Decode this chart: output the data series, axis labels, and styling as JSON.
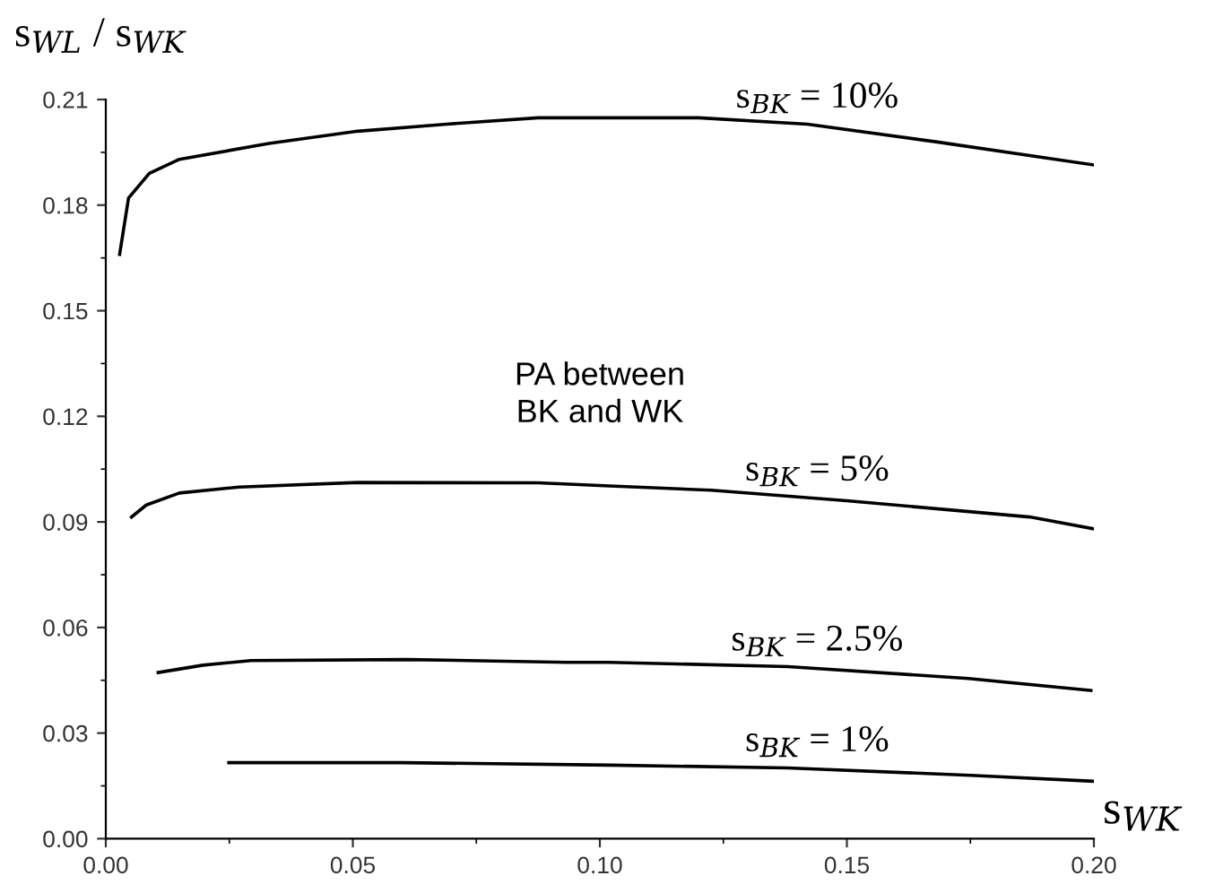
{
  "chart_data": {
    "type": "line",
    "xlabel": "s$_{WK}$",
    "ylabel": "s$_{WL}$ / s$_{WK}$",
    "xlim": [
      0,
      0.2
    ],
    "ylim": [
      0,
      0.21
    ],
    "xticks": [
      {
        "value": 0,
        "label": "0.00"
      },
      {
        "value": 0.05,
        "label": "0.05"
      },
      {
        "value": 0.1,
        "label": "0.10"
      },
      {
        "value": 0.15,
        "label": "0.15"
      },
      {
        "value": 0.2,
        "label": "0.20"
      }
    ],
    "yticks": [
      {
        "value": 0,
        "label": "0.00"
      },
      {
        "value": 0.03,
        "label": "0.03"
      },
      {
        "value": 0.06,
        "label": "0.06"
      },
      {
        "value": 0.09,
        "label": "0.09"
      },
      {
        "value": 0.12,
        "label": "0.12"
      },
      {
        "value": 0.15,
        "label": "0.15"
      },
      {
        "value": 0.18,
        "label": "0.18"
      },
      {
        "value": 0.21,
        "label": "0.21"
      }
    ],
    "grid": false,
    "legend": false,
    "marker": "none",
    "line_style": "solid",
    "annotations": [
      "PA between\nBK and WK"
    ],
    "series": [
      {
        "name": "s$_{BK}$ = 10%",
        "color": "#000000",
        "x": [
          0.0028,
          0.0046,
          0.0088,
          0.0149,
          0.033,
          0.051,
          0.069,
          0.0875,
          0.12,
          0.142,
          0.168,
          0.2
        ],
        "values": [
          0.166,
          0.182,
          0.189,
          0.193,
          0.1975,
          0.201,
          0.203,
          0.2048,
          0.2048,
          0.203,
          0.198,
          0.1914
        ]
      },
      {
        "name": "s$_{BK}$ = 5%",
        "color": "#000000",
        "x": [
          0.0052,
          0.0082,
          0.0149,
          0.027,
          0.051,
          0.0875,
          0.102,
          0.1226,
          0.15,
          0.187,
          0.2
        ],
        "values": [
          0.0914,
          0.0948,
          0.0982,
          0.0999,
          0.1012,
          0.1011,
          0.1002,
          0.099,
          0.096,
          0.0914,
          0.088
        ]
      },
      {
        "name": "s$_{BK}$ = 2.5%",
        "color": "#000000",
        "x": [
          0.0106,
          0.0197,
          0.0294,
          0.0609,
          0.0935,
          0.102,
          0.138,
          0.1746,
          0.1994
        ],
        "values": [
          0.0472,
          0.0493,
          0.0506,
          0.0509,
          0.0501,
          0.0501,
          0.0489,
          0.0455,
          0.0421
        ]
      },
      {
        "name": "s$_{BK}$ = 1%",
        "color": "#000000",
        "x": [
          0.0249,
          0.06,
          0.102,
          0.138,
          0.175,
          0.2
        ],
        "values": [
          0.0216,
          0.0216,
          0.0209,
          0.0201,
          0.018,
          0.0163
        ]
      }
    ]
  }
}
